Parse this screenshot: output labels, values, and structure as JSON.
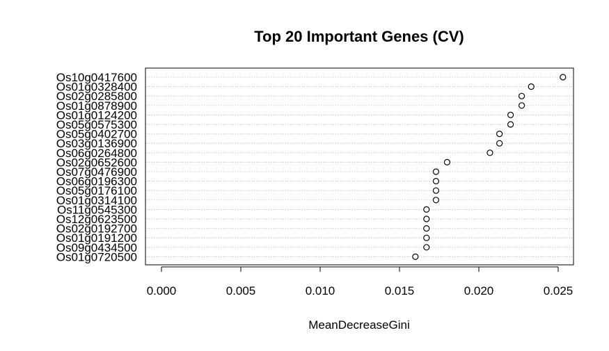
{
  "chart_data": {
    "type": "scatter",
    "title": "Top 20 Important Genes (CV)",
    "xlabel": "MeanDecreaseGini",
    "ylabel": "",
    "xlim": [
      0,
      0.025
    ],
    "x_ticks": [
      "0.000",
      "0.005",
      "0.010",
      "0.015",
      "0.020",
      "0.025"
    ],
    "x_tick_values": [
      0,
      0.005,
      0.01,
      0.015,
      0.02,
      0.025
    ],
    "grid": "horizontal-dotted",
    "categories": [
      "Os10g0417600",
      "Os01g0328400",
      "Os02g0285800",
      "Os01g0878900",
      "Os01g0124200",
      "Os05g0575300",
      "Os05g0402700",
      "Os03g0136900",
      "Os06g0264800",
      "Os02g0652600",
      "Os07g0476900",
      "Os06g0196300",
      "Os05g0176100",
      "Os01g0314100",
      "Os11g0545300",
      "Os12g0623500",
      "Os02g0192700",
      "Os01g0191200",
      "Os09g0434500",
      "Os01g0720500"
    ],
    "values": [
      0.0253,
      0.0233,
      0.0227,
      0.0227,
      0.022,
      0.022,
      0.0213,
      0.0213,
      0.0207,
      0.018,
      0.0173,
      0.0173,
      0.0173,
      0.0173,
      0.0167,
      0.0167,
      0.0167,
      0.0167,
      0.0167,
      0.016
    ]
  }
}
